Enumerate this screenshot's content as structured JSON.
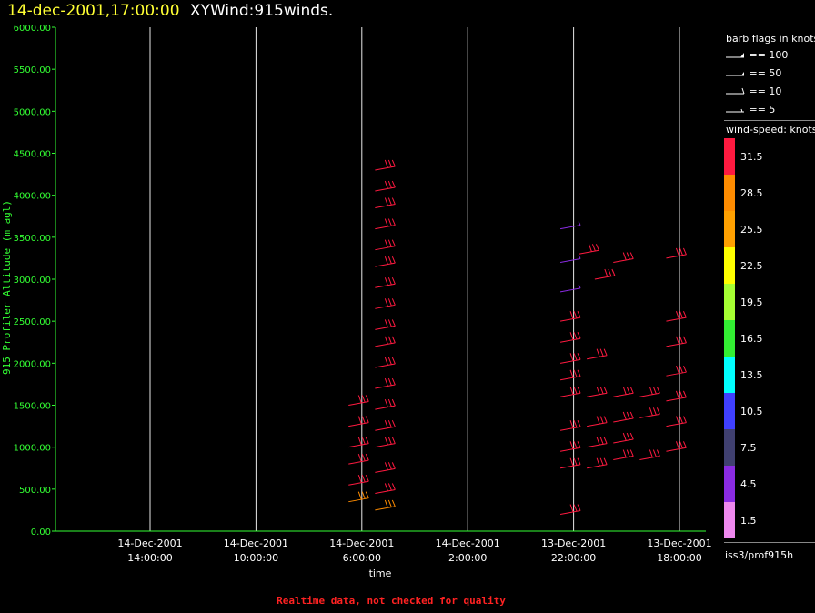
{
  "header": {
    "datetime": "14-dec-2001,17:00:00",
    "title": "XYWind:915winds."
  },
  "footer": "Realtime data, not checked for quality",
  "chart_data": {
    "type": "scatter",
    "xlabel": "time",
    "ylabel": "915 Profiler Altitude (m agl)",
    "ylim": [
      0,
      6000
    ],
    "yticks": [
      "0.00",
      "500.00",
      "1000.00",
      "1500.00",
      "2000.00",
      "2500.00",
      "3000.00",
      "3500.00",
      "4000.00",
      "4500.00",
      "5000.00",
      "5500.00",
      "6000.00"
    ],
    "xticks": [
      {
        "date": "14-Dec-2001",
        "time": "14:00:00"
      },
      {
        "date": "14-Dec-2001",
        "time": "10:00:00"
      },
      {
        "date": "14-Dec-2001",
        "time": "6:00:00"
      },
      {
        "date": "14-Dec-2001",
        "time": "2:00:00"
      },
      {
        "date": "13-Dec-2001",
        "time": "22:00:00"
      },
      {
        "date": "13-Dec-2001",
        "time": "18:00:00"
      }
    ],
    "x_axis_direction": "time decreasing to the right",
    "grid": "vertical lines at x ticks",
    "wind_barbs": [
      {
        "hours_before_end": 11.5,
        "altitude": 4300,
        "speed": 32
      },
      {
        "hours_before_end": 11.5,
        "altitude": 4050,
        "speed": 32
      },
      {
        "hours_before_end": 11.5,
        "altitude": 3850,
        "speed": 32
      },
      {
        "hours_before_end": 11.5,
        "altitude": 3600,
        "speed": 32
      },
      {
        "hours_before_end": 11.5,
        "altitude": 3350,
        "speed": 32
      },
      {
        "hours_before_end": 11.5,
        "altitude": 3150,
        "speed": 32
      },
      {
        "hours_before_end": 11.5,
        "altitude": 2900,
        "speed": 32
      },
      {
        "hours_before_end": 11.5,
        "altitude": 2650,
        "speed": 32
      },
      {
        "hours_before_end": 11.5,
        "altitude": 2400,
        "speed": 32
      },
      {
        "hours_before_end": 11.5,
        "altitude": 2200,
        "speed": 32
      },
      {
        "hours_before_end": 11.5,
        "altitude": 1950,
        "speed": 32
      },
      {
        "hours_before_end": 11.5,
        "altitude": 1700,
        "speed": 32
      },
      {
        "hours_before_end": 11.5,
        "altitude": 1450,
        "speed": 32
      },
      {
        "hours_before_end": 11.5,
        "altitude": 1200,
        "speed": 32
      },
      {
        "hours_before_end": 11.5,
        "altitude": 1000,
        "speed": 32
      },
      {
        "hours_before_end": 11.5,
        "altitude": 700,
        "speed": 32
      },
      {
        "hours_before_end": 11.5,
        "altitude": 450,
        "speed": 32
      },
      {
        "hours_before_end": 11.5,
        "altitude": 250,
        "speed": 28
      },
      {
        "hours_before_end": 12.5,
        "altitude": 1500,
        "speed": 32
      },
      {
        "hours_before_end": 12.5,
        "altitude": 1250,
        "speed": 32
      },
      {
        "hours_before_end": 12.5,
        "altitude": 1000,
        "speed": 32
      },
      {
        "hours_before_end": 12.5,
        "altitude": 800,
        "speed": 32
      },
      {
        "hours_before_end": 12.5,
        "altitude": 550,
        "speed": 32
      },
      {
        "hours_before_end": 12.5,
        "altitude": 350,
        "speed": 28
      },
      {
        "hours_before_end": 4.5,
        "altitude": 3600,
        "speed": 3
      },
      {
        "hours_before_end": 4.5,
        "altitude": 3200,
        "speed": 3
      },
      {
        "hours_before_end": 4.5,
        "altitude": 2850,
        "speed": 3
      },
      {
        "hours_before_end": 3.8,
        "altitude": 3300,
        "speed": 32
      },
      {
        "hours_before_end": 3.2,
        "altitude": 3000,
        "speed": 32
      },
      {
        "hours_before_end": 2.5,
        "altitude": 3200,
        "speed": 32
      },
      {
        "hours_before_end": 4.5,
        "altitude": 2500,
        "speed": 32
      },
      {
        "hours_before_end": 4.5,
        "altitude": 2250,
        "speed": 32
      },
      {
        "hours_before_end": 4.5,
        "altitude": 2000,
        "speed": 32
      },
      {
        "hours_before_end": 4.5,
        "altitude": 1800,
        "speed": 32
      },
      {
        "hours_before_end": 4.5,
        "altitude": 1600,
        "speed": 32
      },
      {
        "hours_before_end": 4.5,
        "altitude": 1200,
        "speed": 32
      },
      {
        "hours_before_end": 4.5,
        "altitude": 950,
        "speed": 32
      },
      {
        "hours_before_end": 4.5,
        "altitude": 750,
        "speed": 32
      },
      {
        "hours_before_end": 4.5,
        "altitude": 200,
        "speed": 32
      },
      {
        "hours_before_end": 3.5,
        "altitude": 2050,
        "speed": 32
      },
      {
        "hours_before_end": 3.5,
        "altitude": 1600,
        "speed": 32
      },
      {
        "hours_before_end": 3.5,
        "altitude": 1250,
        "speed": 32
      },
      {
        "hours_before_end": 3.5,
        "altitude": 1000,
        "speed": 32
      },
      {
        "hours_before_end": 3.5,
        "altitude": 750,
        "speed": 32
      },
      {
        "hours_before_end": 2.5,
        "altitude": 1600,
        "speed": 32
      },
      {
        "hours_before_end": 2.5,
        "altitude": 1300,
        "speed": 32
      },
      {
        "hours_before_end": 2.5,
        "altitude": 1050,
        "speed": 32
      },
      {
        "hours_before_end": 2.5,
        "altitude": 850,
        "speed": 32
      },
      {
        "hours_before_end": 1.5,
        "altitude": 1600,
        "speed": 32
      },
      {
        "hours_before_end": 1.5,
        "altitude": 1350,
        "speed": 32
      },
      {
        "hours_before_end": 1.5,
        "altitude": 850,
        "speed": 32
      },
      {
        "hours_before_end": 0.5,
        "altitude": 3250,
        "speed": 32
      },
      {
        "hours_before_end": 0.5,
        "altitude": 2500,
        "speed": 32
      },
      {
        "hours_before_end": 0.5,
        "altitude": 2200,
        "speed": 32
      },
      {
        "hours_before_end": 0.5,
        "altitude": 1850,
        "speed": 32
      },
      {
        "hours_before_end": 0.5,
        "altitude": 1550,
        "speed": 32
      },
      {
        "hours_before_end": 0.5,
        "altitude": 1250,
        "speed": 32
      },
      {
        "hours_before_end": 0.5,
        "altitude": 950,
        "speed": 32
      }
    ]
  },
  "legend": {
    "flags_title": "barb flags in knots",
    "flags": [
      "== 100",
      "== 50",
      "== 10",
      "== 5"
    ],
    "speed_title": "wind-speed: knots",
    "scale": [
      {
        "label": "31.5",
        "color": "#ff1a40"
      },
      {
        "label": "28.5",
        "color": "#ff8c00"
      },
      {
        "label": "25.5",
        "color": "#ffa000"
      },
      {
        "label": "22.5",
        "color": "#ffff00"
      },
      {
        "label": "19.5",
        "color": "#a6ff33"
      },
      {
        "label": "16.5",
        "color": "#33ee33"
      },
      {
        "label": "13.5",
        "color": "#00ffff"
      },
      {
        "label": "10.5",
        "color": "#4040ff"
      },
      {
        "label": "7.5",
        "color": "#404070"
      },
      {
        "label": "4.5",
        "color": "#8a2be2"
      },
      {
        "label": "1.5",
        "color": "#ee88ee"
      }
    ],
    "source": "iss3/prof915h"
  }
}
